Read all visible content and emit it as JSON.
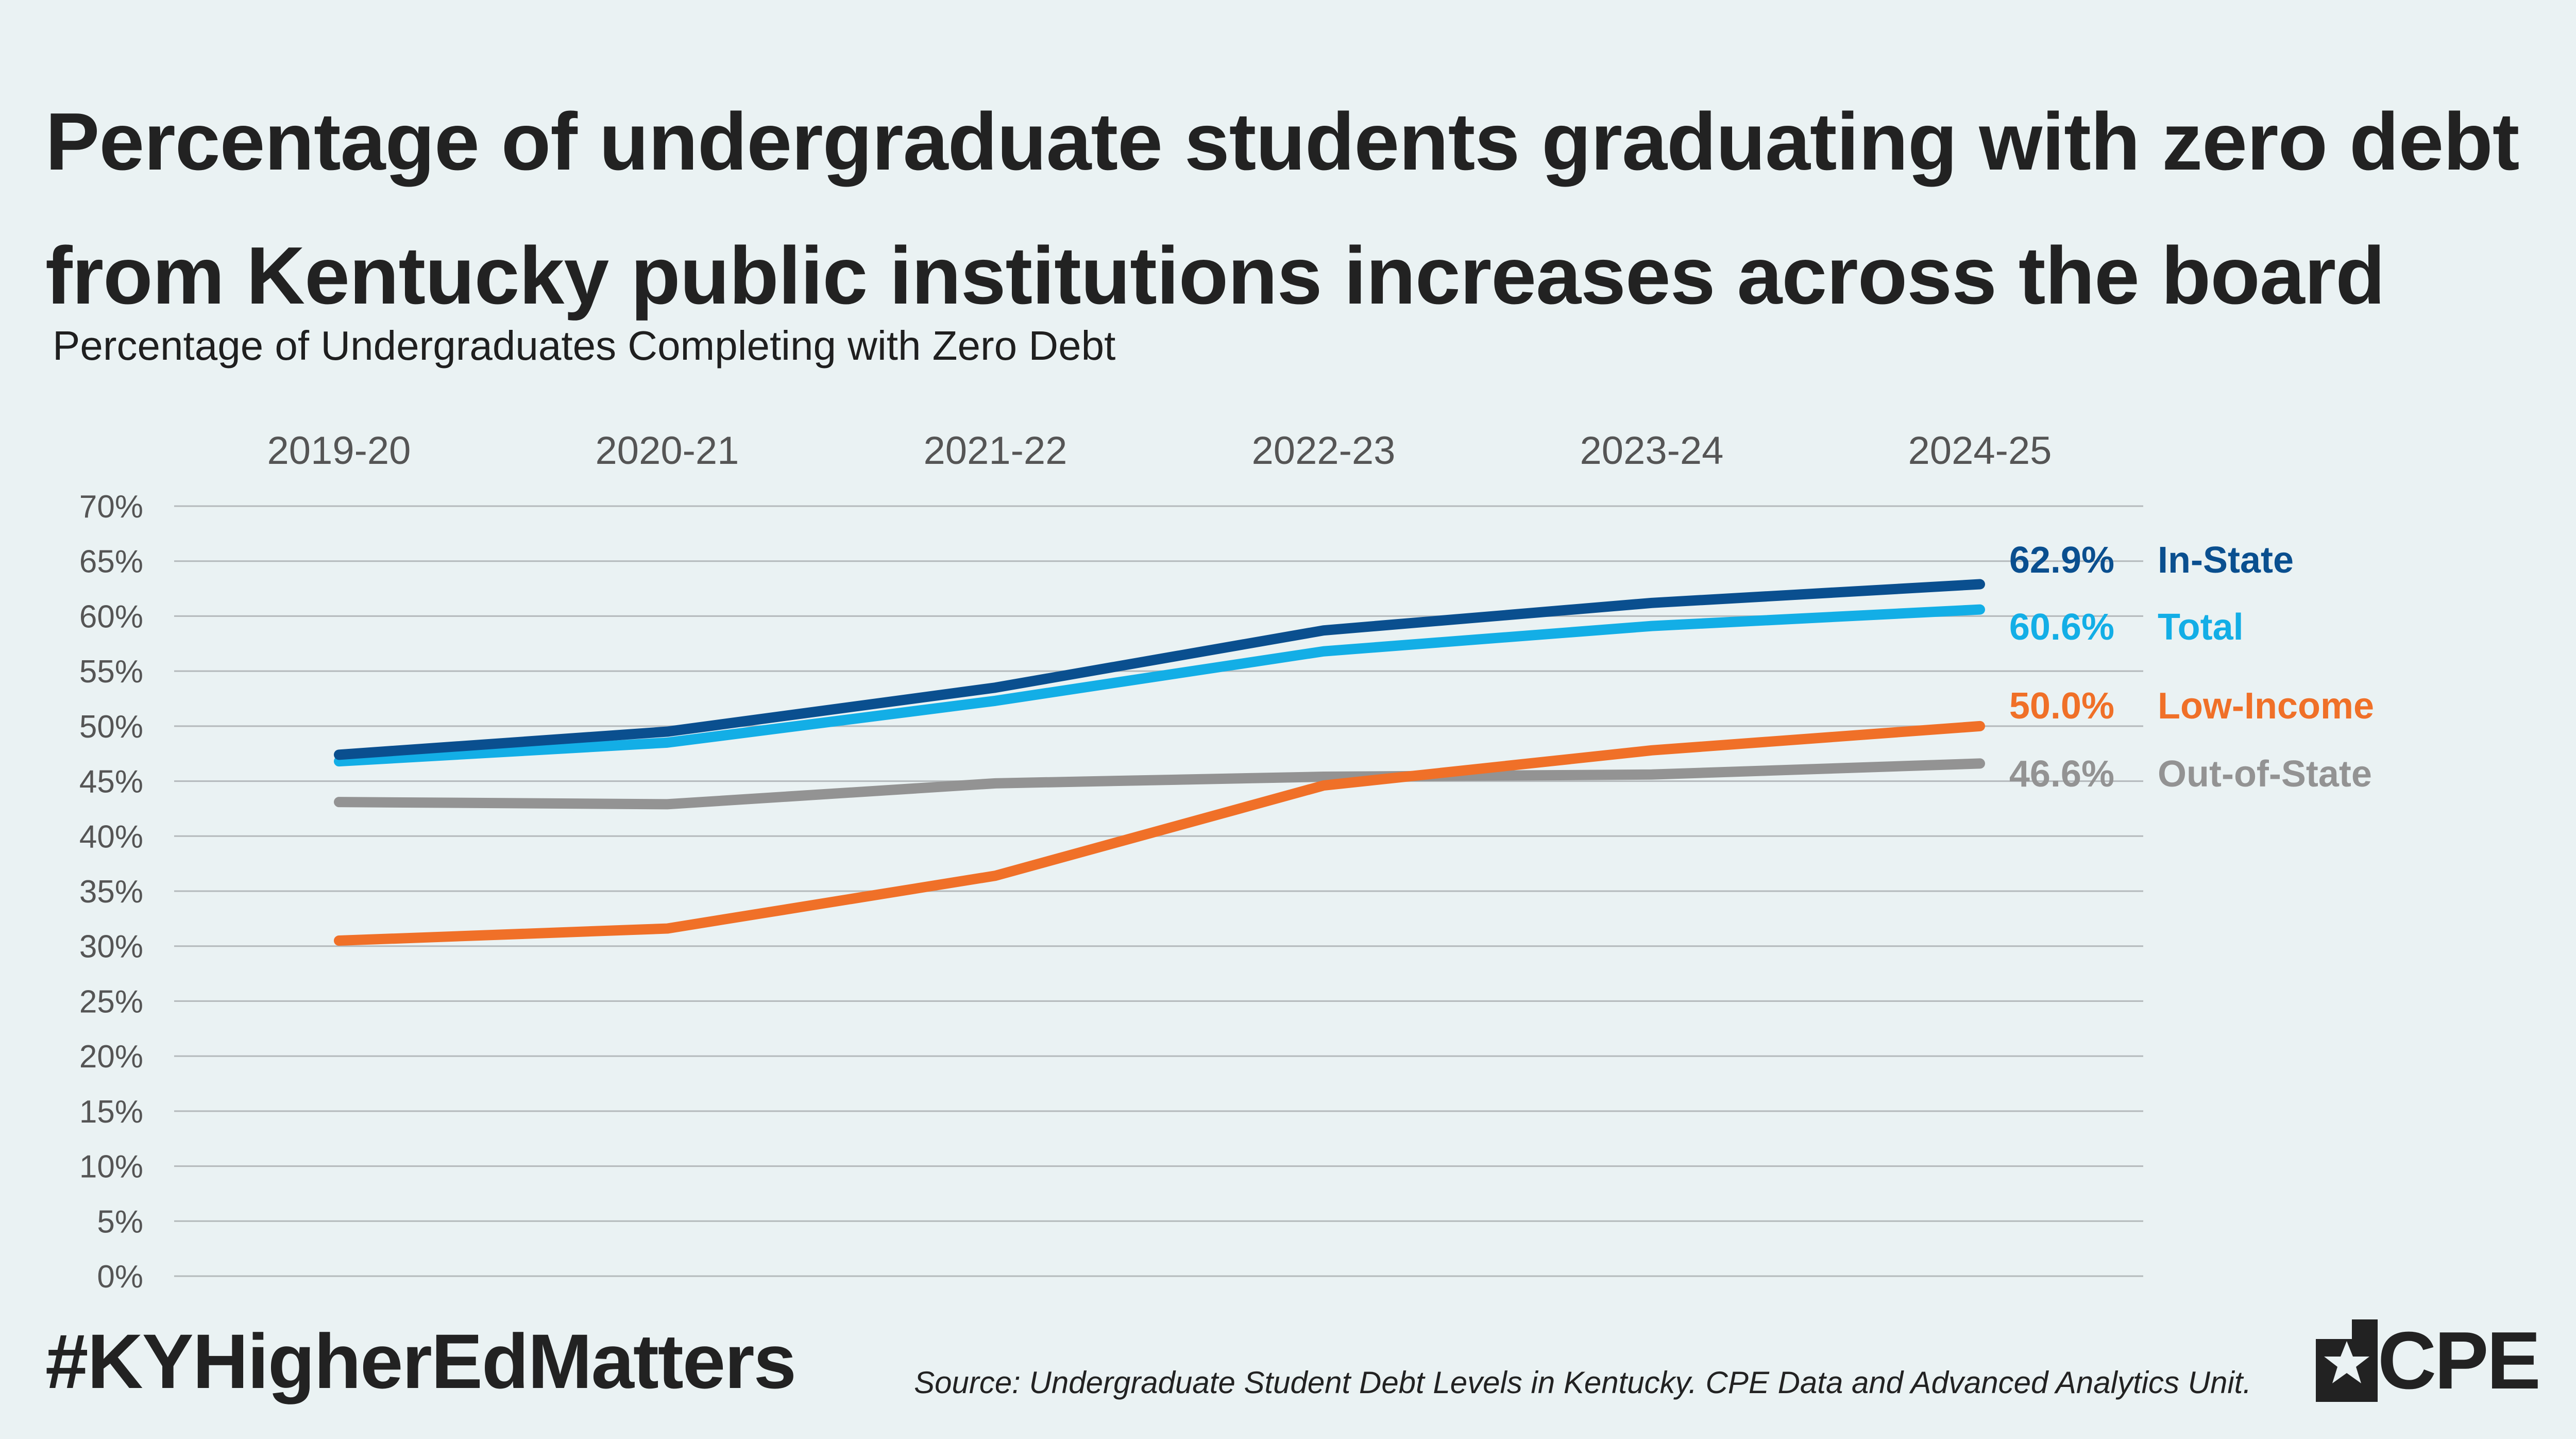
{
  "header": {
    "title_line1": "Percentage of undergraduate students graduating with zero debt",
    "title_line2": "from Kentucky public institutions increases across the board"
  },
  "chart_data": {
    "type": "line",
    "title": "Percentage of undergraduate students graduating with zero debt from Kentucky public institutions increases across the board",
    "subtitle": "Percentage of Undergraduates Completing with Zero Debt",
    "categories": [
      "2019-20",
      "2020-21",
      "2021-22",
      "2022-23",
      "2023-24",
      "2024-25"
    ],
    "ylim": [
      0,
      70
    ],
    "ytick_step": 5,
    "ytick_labels": [
      "0%",
      "5%",
      "10%",
      "15%",
      "20%",
      "25%",
      "30%",
      "35%",
      "40%",
      "45%",
      "50%",
      "55%",
      "60%",
      "65%",
      "70%"
    ],
    "grid": true,
    "xaxis_position": "top",
    "legend": "inline-right",
    "series": [
      {
        "name": "In-State",
        "color": "#0a4f8f",
        "values": [
          47.4,
          49.5,
          53.5,
          58.7,
          61.2,
          62.9
        ],
        "end_label": "62.9%"
      },
      {
        "name": "Total",
        "color": "#13aee6",
        "values": [
          46.8,
          48.5,
          52.3,
          56.8,
          59.1,
          60.6
        ],
        "end_label": "60.6%"
      },
      {
        "name": "Low-Income",
        "color": "#f07028",
        "values": [
          30.5,
          31.6,
          36.4,
          44.6,
          47.8,
          50.0
        ],
        "end_label": "50.0%"
      },
      {
        "name": "Out-of-State",
        "color": "#939393",
        "values": [
          43.1,
          42.9,
          44.8,
          45.4,
          45.6,
          46.6
        ],
        "end_label": "46.6%"
      }
    ]
  },
  "footer": {
    "hashtag": "#KYHigherEdMatters",
    "source": "Source: Undergraduate Student Debt Levels in Kentucky. CPE Data and Advanced Analytics Unit.",
    "logo_text": "CPE"
  },
  "colors": {
    "background": "#eaf2f3",
    "grid": "#b4b9bb",
    "axis_text": "#555555",
    "text": "#222222"
  }
}
